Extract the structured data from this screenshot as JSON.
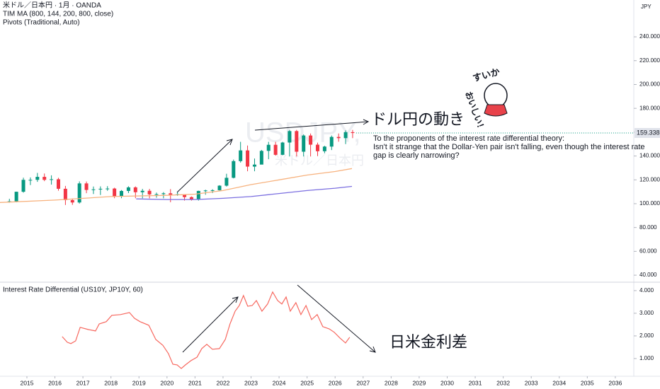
{
  "chart_data": [
    {
      "type": "candlestick",
      "title": "米ドル／日本円 · 1月 · OANDA",
      "indicators": [
        "TIM MA (800, 144, 200, 800, close)",
        "Pivots (Traditional, Auto)"
      ],
      "currency": "JPY",
      "watermark": [
        "USDJPY, 1M",
        "米ドル／日本円"
      ],
      "annotations": [
        "ドル円の動き",
        "To the proponents of the interest rate differential theory:",
        "Isn't it strange that the Dollar-Yen pair isn't falling, even though the interest rate",
        "gap is clearly narrowing?"
      ],
      "sticker": [
        "すいか",
        "おいしい！"
      ],
      "up_color": "#089981",
      "down_color": "#f23645",
      "xlim": [
        2014.04,
        2036.66
      ],
      "ylim": [
        34.7,
        270.9
      ],
      "yticks": [
        {
          "value": 40,
          "label": "40.000"
        },
        {
          "value": 60,
          "label": "60.000"
        },
        {
          "value": 80,
          "label": "80.000"
        },
        {
          "value": 100,
          "label": "100.000"
        },
        {
          "value": 120,
          "label": "120.000"
        },
        {
          "value": 140,
          "label": "140.000"
        },
        {
          "value": 160,
          "label": "160.000"
        },
        {
          "value": 180,
          "label": "180.000"
        },
        {
          "value": 200,
          "label": "200.000"
        },
        {
          "value": 220,
          "label": "220.000"
        },
        {
          "value": 240,
          "label": "240.000"
        }
      ],
      "grid": false,
      "last_price": 159.338,
      "x": [
        2014.25,
        2014.5,
        2014.75,
        2015,
        2015.25,
        2015.5,
        2015.75,
        2016,
        2016.25,
        2016.5,
        2016.75,
        2017,
        2017.25,
        2017.5,
        2017.75,
        2018,
        2018.25,
        2018.5,
        2018.75,
        2019,
        2019.25,
        2019.5,
        2019.75,
        2020,
        2020.25,
        2020.5,
        2020.75,
        2021,
        2021.25,
        2021.5,
        2021.75,
        2022,
        2022.25,
        2022.5,
        2022.75,
        2023,
        2023.25,
        2023.5,
        2023.75,
        2024,
        2024.25,
        2024.5,
        2024.75,
        2025,
        2025.25,
        2025.5,
        2025.75,
        2026,
        2026.25,
        2026.5
      ],
      "opens": [
        101.5,
        102,
        110,
        120,
        120,
        122.5,
        120,
        120.5,
        112.5,
        103,
        101,
        117,
        111.5,
        112,
        112.5,
        112.7,
        106,
        110.7,
        113.7,
        109.6,
        110.8,
        107.8,
        108,
        108.7,
        107.5,
        107.9,
        105.5,
        103.3,
        110.7,
        111.1,
        111.3,
        115.1,
        121.7,
        135.7,
        144.7,
        131.1,
        132.8,
        144.3,
        149.4,
        141,
        151.3,
        160.9,
        143.6,
        157.2,
        149.5,
        144,
        147.9,
        156,
        155,
        160
      ],
      "highs": [
        104.1,
        110.1,
        121.8,
        122,
        125.8,
        125.3,
        123.8,
        121.7,
        114.9,
        104.3,
        118.7,
        118.6,
        114.4,
        114.5,
        114.7,
        113.4,
        111.4,
        114.6,
        114.5,
        112.4,
        112.4,
        109.3,
        109.7,
        112.2,
        109.8,
        107.9,
        106.1,
        110.9,
        111.7,
        112.1,
        115.5,
        125.1,
        137,
        151.9,
        148.8,
        137.9,
        145.1,
        151.9,
        151.9,
        151.9,
        161.9,
        161.9,
        158.1,
        158.9,
        151.2,
        148.6,
        157.2,
        158.9,
        161.5,
        161.9
      ],
      "lows": [
        100.8,
        101.1,
        109.2,
        115.6,
        118.3,
        118.9,
        116,
        110.9,
        98.9,
        99,
        100.1,
        108.8,
        108.1,
        107.3,
        110.8,
        104.6,
        104.6,
        108.9,
        104.6,
        104.5,
        104.5,
        105,
        104.5,
        101.2,
        106.6,
        102.6,
        102.6,
        102.6,
        107.5,
        108.9,
        111.1,
        114.4,
        121.2,
        134.5,
        127.2,
        127.2,
        133,
        137.3,
        140.3,
        140.6,
        139.6,
        139.6,
        139.6,
        139.6,
        139.9,
        142.3,
        145,
        152,
        150,
        155
      ],
      "closes": [
        102,
        110,
        120,
        120,
        122.5,
        120,
        120.5,
        112.5,
        103,
        101,
        117,
        111.5,
        112,
        112.5,
        112.7,
        106,
        110.7,
        113.7,
        109.6,
        110.8,
        107.8,
        108,
        108.7,
        107.5,
        107.9,
        105.5,
        103.3,
        110.7,
        111.1,
        111.3,
        115.1,
        121.7,
        135.7,
        144.7,
        131.1,
        132.8,
        144.3,
        149.4,
        141,
        151.3,
        160.9,
        143.6,
        157.2,
        149.5,
        144,
        147.9,
        156,
        155,
        160,
        159.3
      ],
      "overlays": [
        {
          "color": "#f7b27e",
          "x": [
            2014.04,
            2016,
            2018,
            2020,
            2021,
            2022,
            2023,
            2024,
            2025,
            2026,
            2026.6
          ],
          "values": [
            101,
            103,
            106,
            107,
            108,
            111,
            116,
            120,
            124,
            127,
            129.5
          ]
        },
        {
          "color": "#7b6fe0",
          "x": [
            2018.9,
            2020,
            2021,
            2022,
            2023,
            2024,
            2025,
            2026,
            2026.6
          ],
          "values": [
            104,
            103.5,
            103.5,
            104.5,
            106,
            108.5,
            111,
            113,
            114.5
          ]
        }
      ]
    },
    {
      "type": "line",
      "title": "Interest Rate Differential (US10Y, JP10Y, 60)",
      "annotation": "日米金利差",
      "color": "#f7685f",
      "xlim": [
        2014.04,
        2036.66
      ],
      "ylim": [
        0.28,
        4.34
      ],
      "yticks": [
        {
          "value": 1,
          "label": "1.000"
        },
        {
          "value": 2,
          "label": "2.000"
        },
        {
          "value": 3,
          "label": "3.000"
        },
        {
          "value": 4,
          "label": "4.000"
        }
      ],
      "xticks": [
        2015,
        2016,
        2017,
        2018,
        2019,
        2020,
        2021,
        2022,
        2023,
        2024,
        2025,
        2026,
        2027,
        2028,
        2029,
        2030,
        2031,
        2032,
        2033,
        2034,
        2035,
        2036
      ],
      "grid": false,
      "x": [
        2016.26,
        2016.44,
        2016.57,
        2016.74,
        2016.9,
        2017.2,
        2017.45,
        2017.58,
        2017.83,
        2018.03,
        2018.34,
        2018.66,
        2018.84,
        2019.04,
        2019.35,
        2019.6,
        2019.85,
        2020.05,
        2020.21,
        2020.36,
        2020.51,
        2020.66,
        2020.86,
        2021.07,
        2021.24,
        2021.42,
        2021.62,
        2021.87,
        2022.08,
        2022.25,
        2022.43,
        2022.58,
        2022.73,
        2022.88,
        2023.04,
        2023.19,
        2023.39,
        2023.59,
        2023.77,
        2023.95,
        2024.1,
        2024.25,
        2024.4,
        2024.6,
        2024.78,
        2024.96,
        2025.16,
        2025.36,
        2025.56,
        2025.79,
        2025.97,
        2026.17,
        2026.37,
        2026.52
      ],
      "values": [
        1.97,
        1.72,
        1.66,
        1.78,
        2.38,
        2.28,
        2.22,
        2.53,
        2.63,
        2.91,
        2.94,
        3.03,
        2.78,
        2.63,
        2.47,
        1.84,
        1.59,
        1.22,
        0.75,
        0.72,
        0.56,
        0.72,
        0.91,
        1.06,
        1.44,
        1.63,
        1.41,
        1.44,
        1.84,
        2.53,
        3.09,
        3.34,
        3.78,
        3.31,
        3.34,
        3.56,
        3.09,
        3.41,
        3.94,
        3.56,
        3.41,
        3.72,
        3.09,
        3.47,
        2.94,
        3.34,
        2.72,
        2.94,
        2.41,
        2.31,
        2.16,
        1.91,
        1.69,
        1.94
      ]
    }
  ]
}
